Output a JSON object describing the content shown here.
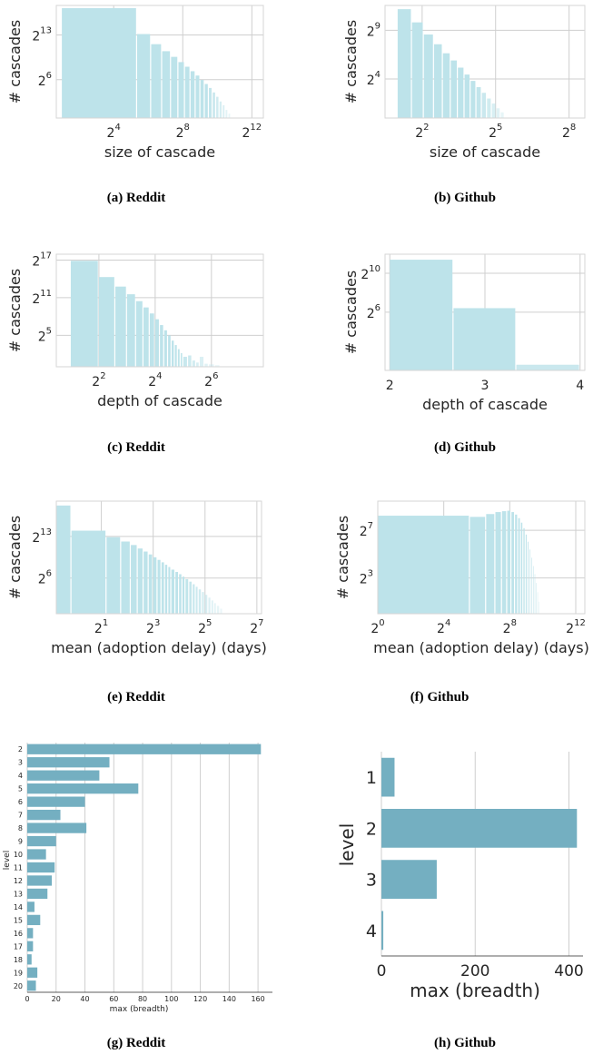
{
  "colors": {
    "hist_bar": "#bde3ea",
    "hbar": "#74afc1",
    "grid": "#cfcfcf"
  },
  "chart_data": [
    {
      "id": "a",
      "type": "bar",
      "caption_label": "(a)",
      "caption_name": "Reddit",
      "xlabel": "size of cascade",
      "ylabel": "# cascades",
      "xscale": "log2",
      "yscale": "log2",
      "x_ticks": [
        {
          "base": "2",
          "exp": "4"
        },
        {
          "base": "2",
          "exp": "8"
        },
        {
          "base": "2",
          "exp": "12"
        }
      ],
      "y_ticks": [
        {
          "base": "2",
          "exp": "13"
        },
        {
          "base": "2",
          "exp": "6"
        }
      ],
      "x_tick_values": [
        16,
        256,
        4096
      ],
      "y_tick_values": [
        8192,
        64
      ],
      "xlim": [
        1.6,
        6500
      ],
      "ylim": [
        1,
        200000
      ],
      "grid": true,
      "bins": [
        [
          2,
          41,
          150000
        ],
        [
          41,
          72,
          9000
        ],
        [
          72,
          112,
          3000
        ],
        [
          112,
          160,
          1400
        ],
        [
          160,
          215,
          760
        ],
        [
          215,
          280,
          430
        ],
        [
          280,
          350,
          260
        ],
        [
          350,
          430,
          160
        ],
        [
          430,
          520,
          100
        ],
        [
          520,
          620,
          62
        ],
        [
          620,
          730,
          40
        ],
        [
          730,
          850,
          26
        ],
        [
          850,
          980,
          16
        ],
        [
          980,
          1120,
          10
        ],
        [
          1120,
          1270,
          6
        ],
        [
          1270,
          1430,
          4
        ],
        [
          1430,
          1600,
          2.4
        ],
        [
          1600,
          1790,
          1.6
        ]
      ]
    },
    {
      "id": "b",
      "type": "bar",
      "caption_label": "(b)",
      "caption_name": "Github",
      "xlabel": "size of cascade",
      "ylabel": "# cascades",
      "xscale": "log2",
      "yscale": "log2",
      "x_ticks": [
        {
          "base": "2",
          "exp": "2"
        },
        {
          "base": "2",
          "exp": "5"
        },
        {
          "base": "2",
          "exp": "8"
        }
      ],
      "y_ticks": [
        {
          "base": "2",
          "exp": "9"
        },
        {
          "base": "2",
          "exp": "4"
        }
      ],
      "x_tick_values": [
        4,
        32,
        256
      ],
      "y_tick_values": [
        512,
        16
      ],
      "xlim": [
        1.4,
        400
      ],
      "ylim": [
        1,
        3000
      ],
      "grid": true,
      "bins": [
        [
          2,
          3,
          2300
        ],
        [
          3,
          4.2,
          900
        ],
        [
          4.2,
          5.6,
          380
        ],
        [
          5.6,
          7.2,
          190
        ],
        [
          7.2,
          9,
          100
        ],
        [
          9,
          11,
          60
        ],
        [
          11,
          13.3,
          36
        ],
        [
          13.3,
          15.8,
          22
        ],
        [
          15.8,
          18.6,
          14
        ],
        [
          18.6,
          21.7,
          9
        ],
        [
          21.7,
          25.1,
          6
        ],
        [
          25.1,
          28.8,
          4
        ],
        [
          28.8,
          32.8,
          2.8
        ],
        [
          32.8,
          37,
          2
        ],
        [
          37,
          41.5,
          1.5
        ]
      ]
    },
    {
      "id": "c",
      "type": "bar",
      "caption_label": "(c)",
      "caption_name": "Reddit",
      "xlabel": "depth of cascade",
      "ylabel": "# cascades",
      "xscale": "log2",
      "yscale": "log2",
      "x_ticks": [
        {
          "base": "2",
          "exp": "2"
        },
        {
          "base": "2",
          "exp": "4"
        },
        {
          "base": "2",
          "exp": "6"
        }
      ],
      "y_ticks": [
        {
          "base": "2",
          "exp": "17"
        },
        {
          "base": "2",
          "exp": "11"
        },
        {
          "base": "2",
          "exp": "5"
        }
      ],
      "x_tick_values": [
        4,
        16,
        64
      ],
      "y_tick_values": [
        131072,
        2048,
        32
      ],
      "xlim": [
        1.4,
        230
      ],
      "ylim": [
        1,
        250000
      ],
      "grid": true,
      "bins": [
        [
          2,
          4,
          120000
        ],
        [
          4,
          6,
          20000
        ],
        [
          6,
          8,
          7000
        ],
        [
          8,
          10,
          3000
        ],
        [
          10,
          12,
          1400
        ],
        [
          12,
          14,
          700
        ],
        [
          14,
          16,
          360
        ],
        [
          16,
          18,
          190
        ],
        [
          18,
          20,
          100
        ],
        [
          20,
          22,
          56
        ],
        [
          22,
          24,
          32
        ],
        [
          24,
          26,
          18
        ],
        [
          26,
          28,
          11
        ],
        [
          28,
          30,
          7
        ],
        [
          30,
          32,
          4.5
        ],
        [
          32,
          36,
          3
        ],
        [
          36,
          40,
          3.5
        ],
        [
          40,
          44,
          2
        ],
        [
          44,
          48,
          1.6
        ],
        [
          48,
          54,
          3
        ],
        [
          54,
          60,
          1.4
        ],
        [
          60,
          70,
          1.3
        ],
        [
          70,
          80,
          1.2
        ]
      ]
    },
    {
      "id": "d",
      "type": "bar",
      "caption_label": "(d)",
      "caption_name": "Github",
      "xlabel": "depth of cascade",
      "ylabel": "# cascades",
      "xscale": "linear",
      "yscale": "log2",
      "x_ticks": [
        {
          "base": "2",
          "exp": ""
        },
        {
          "base": "3",
          "exp": ""
        },
        {
          "base": "4",
          "exp": ""
        }
      ],
      "y_ticks": [
        {
          "base": "2",
          "exp": "10"
        },
        {
          "base": "2",
          "exp": "6"
        }
      ],
      "x_tick_values": [
        2,
        3,
        4
      ],
      "y_tick_values": [
        1024,
        64
      ],
      "xlim": [
        1.95,
        4.05
      ],
      "ylim": [
        1,
        4000
      ],
      "grid": true,
      "bins": [
        [
          2,
          2.67,
          2700
        ],
        [
          2.67,
          3.33,
          85
        ],
        [
          3.33,
          4,
          1.5
        ]
      ]
    },
    {
      "id": "e",
      "type": "bar",
      "caption_label": "(e)",
      "caption_name": "Reddit",
      "xlabel": "mean (adoption delay) (days)",
      "ylabel": "# cascades",
      "xscale": "log2",
      "yscale": "log2",
      "x_ticks": [
        {
          "base": "2",
          "exp": "1"
        },
        {
          "base": "2",
          "exp": "3"
        },
        {
          "base": "2",
          "exp": "5"
        },
        {
          "base": "2",
          "exp": "7"
        }
      ],
      "y_ticks": [
        {
          "base": "2",
          "exp": "13"
        },
        {
          "base": "2",
          "exp": "6"
        }
      ],
      "x_tick_values": [
        2,
        8,
        32,
        128
      ],
      "y_tick_values": [
        8192,
        64
      ],
      "xlim": [
        0.6,
        145
      ],
      "ylim": [
        1,
        500000
      ],
      "grid": true,
      "bins": [
        [
          0.6,
          0.9,
          300000
        ],
        [
          0.9,
          2.3,
          16000
        ],
        [
          2.3,
          3.4,
          7500
        ],
        [
          3.4,
          4.4,
          4500
        ],
        [
          4.4,
          5.3,
          3000
        ],
        [
          5.3,
          6.2,
          2000
        ],
        [
          6.2,
          7.1,
          1400
        ],
        [
          7.1,
          8,
          1000
        ],
        [
          8,
          9,
          720
        ],
        [
          9,
          10,
          530
        ],
        [
          10,
          11,
          400
        ],
        [
          11,
          12,
          300
        ],
        [
          12,
          13,
          230
        ],
        [
          13,
          14.5,
          170
        ],
        [
          14.5,
          16,
          130
        ],
        [
          16,
          17.5,
          100
        ],
        [
          17.5,
          19,
          75
        ],
        [
          19,
          21,
          56
        ],
        [
          21,
          23,
          42
        ],
        [
          23,
          25,
          31
        ],
        [
          25,
          27,
          23
        ],
        [
          27,
          29.5,
          17
        ],
        [
          29.5,
          32,
          12.5
        ],
        [
          32,
          35,
          9
        ],
        [
          35,
          38,
          6.5
        ],
        [
          38,
          41,
          4.7
        ],
        [
          41,
          44,
          3.4
        ],
        [
          44,
          48,
          2.5
        ],
        [
          48,
          52,
          1.8
        ]
      ]
    },
    {
      "id": "f",
      "type": "bar",
      "caption_label": "(f)",
      "caption_name": "Github",
      "xlabel": "mean (adoption delay) (days)",
      "ylabel": "# cascades",
      "xscale": "log2",
      "yscale": "log2",
      "x_ticks": [
        {
          "base": "2",
          "exp": "0"
        },
        {
          "base": "2",
          "exp": "4"
        },
        {
          "base": "2",
          "exp": "8"
        },
        {
          "base": "2",
          "exp": "12"
        }
      ],
      "y_ticks": [
        {
          "base": "2",
          "exp": "7"
        },
        {
          "base": "2",
          "exp": "3"
        }
      ],
      "x_tick_values": [
        1,
        16,
        256,
        4096
      ],
      "y_tick_values": [
        128,
        8
      ],
      "xlim": [
        1,
        6000
      ],
      "ylim": [
        1,
        700
      ],
      "grid": true,
      "bins": [
        [
          1,
          48,
          300
        ],
        [
          48,
          95,
          280
        ],
        [
          95,
          140,
          330
        ],
        [
          140,
          185,
          370
        ],
        [
          185,
          230,
          390
        ],
        [
          230,
          275,
          400
        ],
        [
          275,
          320,
          370
        ],
        [
          320,
          365,
          320
        ],
        [
          365,
          410,
          260
        ],
        [
          410,
          455,
          200
        ],
        [
          455,
          500,
          145
        ],
        [
          500,
          545,
          100
        ],
        [
          545,
          590,
          66
        ],
        [
          590,
          635,
          42
        ],
        [
          635,
          680,
          26
        ],
        [
          680,
          725,
          16
        ],
        [
          725,
          770,
          10
        ],
        [
          770,
          815,
          6
        ],
        [
          815,
          860,
          3.5
        ],
        [
          860,
          905,
          2
        ]
      ]
    },
    {
      "id": "g",
      "type": "bar",
      "orientation": "horizontal",
      "caption_label": "(g)",
      "caption_name": "Reddit",
      "xlabel": "max (breadth)",
      "ylabel": "level",
      "categories": [
        "2",
        "3",
        "4",
        "5",
        "6",
        "7",
        "8",
        "9",
        "10",
        "11",
        "12",
        "13",
        "14",
        "15",
        "16",
        "17",
        "18",
        "19",
        "20"
      ],
      "values": [
        162,
        57,
        50,
        77,
        40,
        23,
        41,
        20,
        13,
        19,
        17,
        14,
        5,
        9,
        4,
        4,
        3,
        7,
        6
      ],
      "x_ticks": [
        "0",
        "20",
        "40",
        "60",
        "80",
        "100",
        "120",
        "140",
        "160"
      ],
      "x_tick_values": [
        0,
        20,
        40,
        60,
        80,
        100,
        120,
        140,
        160
      ],
      "xlim": [
        0,
        170
      ],
      "grid": true
    },
    {
      "id": "h",
      "type": "bar",
      "orientation": "horizontal",
      "caption_label": "(h)",
      "caption_name": "Github",
      "xlabel": "max (breadth)",
      "ylabel": "level",
      "categories": [
        "1",
        "2",
        "3",
        "4"
      ],
      "values": [
        28,
        417,
        118,
        4
      ],
      "x_ticks": [
        "0",
        "200",
        "400"
      ],
      "x_tick_values": [
        0,
        200,
        400
      ],
      "xlim": [
        0,
        430
      ],
      "grid": true
    }
  ]
}
